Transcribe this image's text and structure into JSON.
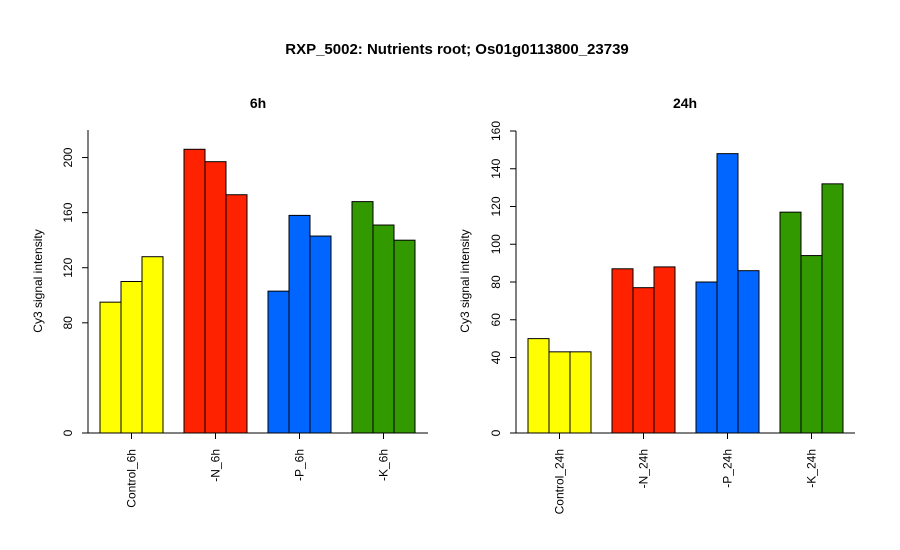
{
  "title": "RXP_5002: Nutrients root; Os01g0113800_23739",
  "chart_data": [
    {
      "type": "bar",
      "title": "6h",
      "ylabel": "Cy3 signal intensity",
      "ylim": [
        0,
        220
      ],
      "yticks": [
        0,
        80,
        120,
        160,
        200
      ],
      "groups": [
        {
          "label": "Control_6h",
          "color": "#FFFF00",
          "values": [
            95,
            110,
            128
          ]
        },
        {
          "label": "-N_6h",
          "color": "#FF2200",
          "values": [
            206,
            197,
            173
          ]
        },
        {
          "label": "-P_6h",
          "color": "#0066FF",
          "values": [
            103,
            158,
            143
          ]
        },
        {
          "label": "-K_6h",
          "color": "#339900",
          "values": [
            168,
            151,
            140
          ]
        }
      ]
    },
    {
      "type": "bar",
      "title": "24h",
      "ylabel": "Cy3 signal intensity",
      "ylim": [
        0,
        160
      ],
      "yticks": [
        0,
        40,
        60,
        80,
        100,
        120,
        140,
        160
      ],
      "groups": [
        {
          "label": "Control_24h",
          "color": "#FFFF00",
          "values": [
            50,
            43,
            43
          ]
        },
        {
          "label": "-N_24h",
          "color": "#FF2200",
          "values": [
            87,
            77,
            88
          ]
        },
        {
          "label": "-P_24h",
          "color": "#0066FF",
          "values": [
            80,
            148,
            86
          ]
        },
        {
          "label": "-K_24h",
          "color": "#339900",
          "values": [
            117,
            94,
            132
          ]
        }
      ]
    }
  ]
}
